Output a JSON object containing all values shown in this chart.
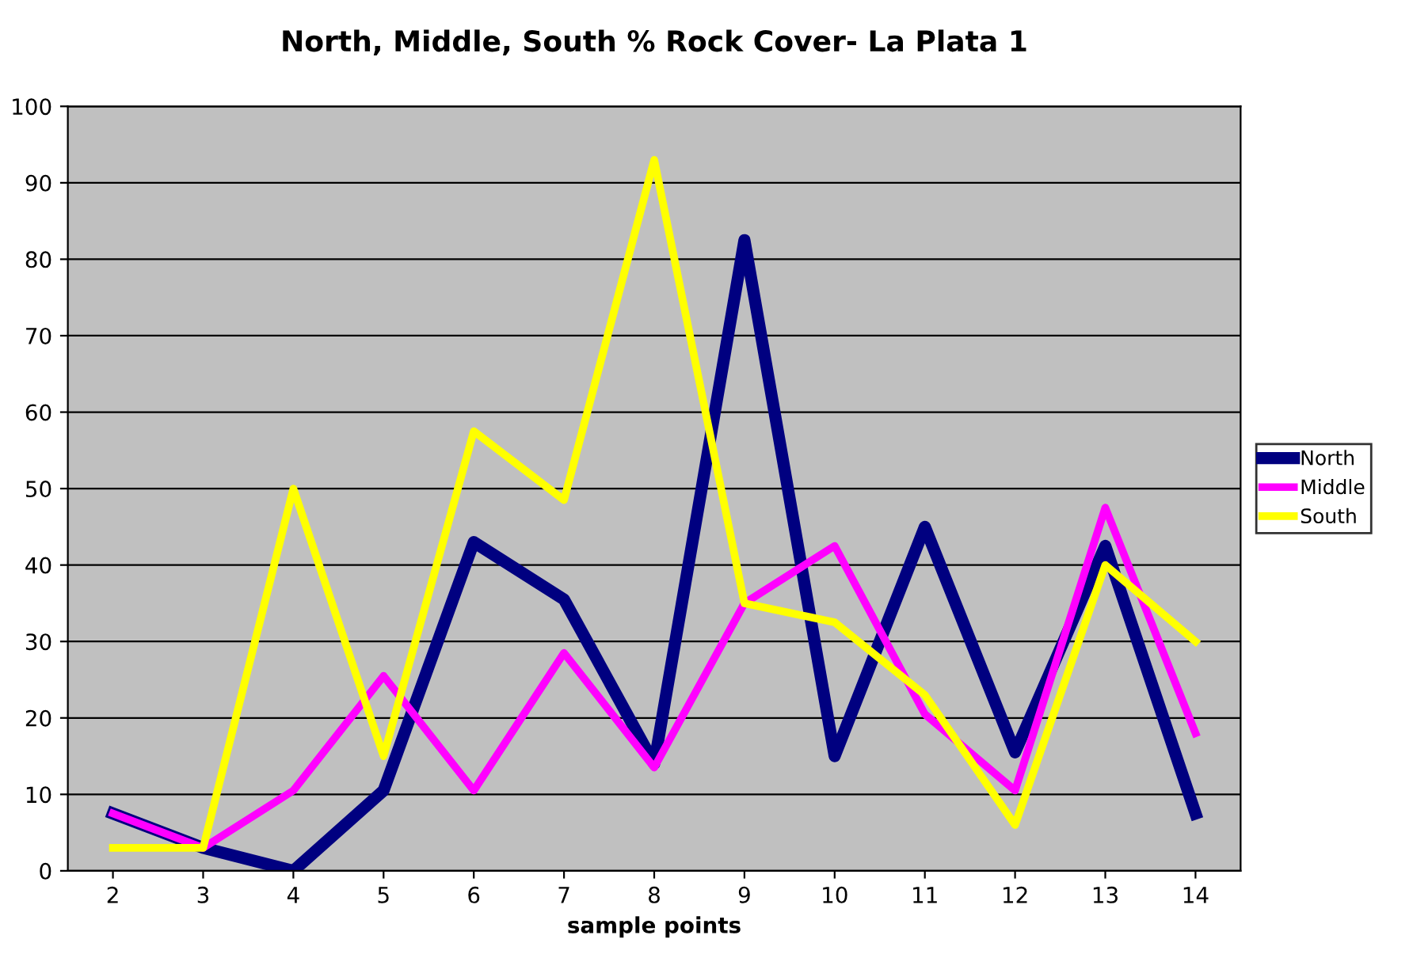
{
  "chart_data": {
    "type": "line",
    "title": "North, Middle, South % Rock Cover- La Plata 1",
    "xlabel": "sample points",
    "categories": [
      "2",
      "3",
      "4",
      "5",
      "6",
      "7",
      "8",
      "9",
      "10",
      "11",
      "12",
      "13",
      "14"
    ],
    "series": [
      {
        "name": "North",
        "color": "#000080",
        "values": [
          7.5,
          3,
          0,
          10.5,
          43,
          35.5,
          14,
          82.5,
          15,
          45,
          15.5,
          42.5,
          7.5
        ]
      },
      {
        "name": "Middle",
        "color": "#ff00ff",
        "values": [
          7.5,
          3,
          10.5,
          25.5,
          10.5,
          28.5,
          13.5,
          35,
          42.5,
          20.5,
          10.5,
          47.5,
          18
        ]
      },
      {
        "name": "South",
        "color": "#ffff00",
        "values": [
          3,
          3,
          50,
          15,
          57.5,
          48.5,
          93,
          35,
          32.5,
          23,
          6,
          40,
          30
        ]
      }
    ],
    "ylim": [
      0,
      100
    ],
    "yticks": [
      0,
      10,
      20,
      30,
      40,
      50,
      60,
      70,
      80,
      90,
      100
    ],
    "grid": "y",
    "legend": "right",
    "marker": "none",
    "line_style": "solid"
  }
}
